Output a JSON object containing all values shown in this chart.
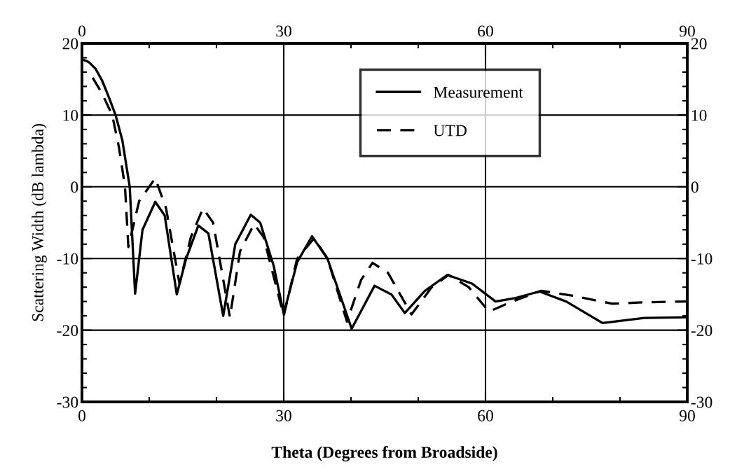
{
  "chart_data": {
    "type": "line",
    "xlabel": "Theta (Degrees from Broadside)",
    "ylabel": "Scattering Width (dB lambda)",
    "xlim": [
      0,
      90
    ],
    "xticks": [
      0,
      30,
      60,
      90
    ],
    "ylim": [
      -30,
      20
    ],
    "yticks": [
      -30,
      -20,
      -10,
      0,
      10,
      20
    ],
    "x2lim": [
      0,
      90
    ],
    "x2ticks": [
      0,
      30,
      60,
      90
    ],
    "y2lim": [
      -30,
      20
    ],
    "y2ticks": [
      -30,
      -20,
      -10,
      0,
      10,
      20
    ],
    "grid": true,
    "legend": "top right",
    "series": [
      {
        "name": "Measurement",
        "color": "#000000",
        "line_style": "solid",
        "x": [
          0,
          1,
          2,
          3,
          4,
          5,
          6,
          7.1,
          7.9,
          9,
          10.9,
          12.3,
          14.1,
          15.5,
          17.3,
          18.8,
          21.0,
          22.8,
          25.1,
          26.5,
          28.5,
          30,
          32,
          34.2,
          36.5,
          40.1,
          43.5,
          46,
          48.0,
          51,
          54.3,
          58,
          61.5,
          64.5,
          68,
          72,
          77.4,
          83.6,
          90
        ],
        "values": [
          17.8,
          17.4,
          16.5,
          14.8,
          12.5,
          10,
          6.5,
          0,
          -14.9,
          -6,
          -2.1,
          -4,
          -15,
          -10,
          -5.4,
          -6.5,
          -18,
          -8,
          -3.9,
          -5,
          -11,
          -17.7,
          -10.5,
          -6.9,
          -10,
          -19.8,
          -13.8,
          -15,
          -17.6,
          -14.5,
          -12.3,
          -13.5,
          -16.0,
          -15.5,
          -14.6,
          -16,
          -19.0,
          -18.3,
          -18.2
        ]
      },
      {
        "name": "UTD",
        "color": "#000000",
        "line_style": "dashed",
        "x": [
          1.6,
          3,
          4.5,
          5.5,
          6.4,
          6.9,
          8.5,
          10.9,
          12.5,
          14.5,
          16.2,
          18.0,
          19.5,
          22.0,
          23.5,
          25.6,
          27,
          30,
          32,
          34.5,
          36.5,
          39.4,
          41.5,
          43.2,
          45.5,
          49,
          52,
          54.5,
          57.5,
          60.5,
          64,
          68.3,
          73,
          78.8,
          84,
          90
        ],
        "values": [
          15.2,
          13,
          10,
          5.5,
          0,
          -8.4,
          -2,
          1.2,
          -3,
          -13.5,
          -7,
          -3.0,
          -5,
          -18.2,
          -9,
          -5.2,
          -7,
          -18,
          -10,
          -7.2,
          -10,
          -18.8,
          -13,
          -10.6,
          -12,
          -17.8,
          -14,
          -12.3,
          -14,
          -17.4,
          -16,
          -14.5,
          -15.2,
          -16.3,
          -16.1,
          -16.0
        ]
      }
    ]
  }
}
